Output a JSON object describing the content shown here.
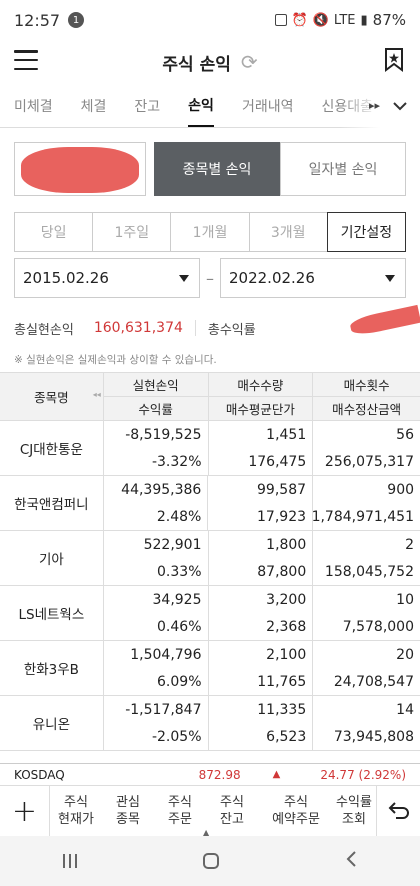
{
  "status": {
    "time": "12:57",
    "notif_count": "1",
    "battery": "87%",
    "network": "LTE"
  },
  "header": {
    "title": "주식 손익"
  },
  "tabs": [
    "미체결",
    "체결",
    "잔고",
    "손익",
    "거래내역",
    "신용대출"
  ],
  "active_tab": "손익",
  "segments": {
    "by_item": "종목별 손익",
    "by_date": "일자별 손익"
  },
  "periods": [
    "당일",
    "1주일",
    "1개월",
    "3개월",
    "기간설정"
  ],
  "active_period": "기간설정",
  "dates": {
    "start": "2015.02.26",
    "end": "2022.02.26",
    "separator": "–"
  },
  "summary": {
    "realized_label": "총실현손익",
    "realized_value": "160,631,374",
    "return_label": "총수익률"
  },
  "note": "※ 실현손익은 실제손익과 상이할 수 있습니다.",
  "table": {
    "headers": {
      "name": "종목명",
      "c1_top": "실현손익",
      "c1_bottom": "수익률",
      "c2_top": "매수수량",
      "c2_bottom": "매수평균단가",
      "c3_top": "매수횟수",
      "c3_bottom": "매수정산금액"
    },
    "rows": [
      {
        "name": "CJ대한통운",
        "pl": "-8,519,525",
        "rate": "-3.32%",
        "qty": "1,451",
        "avg": "176,475",
        "count": "56",
        "amount": "256,075,317",
        "sign": "neg"
      },
      {
        "name": "한국앤컴퍼니",
        "pl": "44,395,386",
        "rate": "2.48%",
        "qty": "99,587",
        "avg": "17,923",
        "count": "900",
        "amount": "1,784,971,451",
        "sign": "pos"
      },
      {
        "name": "기아",
        "pl": "522,901",
        "rate": "0.33%",
        "qty": "1,800",
        "avg": "87,800",
        "count": "2",
        "amount": "158,045,752",
        "sign": "pos"
      },
      {
        "name": "LS네트웍스",
        "pl": "34,925",
        "rate": "0.46%",
        "qty": "3,200",
        "avg": "2,368",
        "count": "10",
        "amount": "7,578,000",
        "sign": "pos"
      },
      {
        "name": "한화3우B",
        "pl": "1,504,796",
        "rate": "6.09%",
        "qty": "2,100",
        "avg": "11,765",
        "count": "20",
        "amount": "24,708,547",
        "sign": "pos"
      },
      {
        "name": "유니온",
        "pl": "-1,517,847",
        "rate": "-2.05%",
        "qty": "11,335",
        "avg": "6,523",
        "count": "14",
        "amount": "73,945,808",
        "sign": "neg"
      }
    ]
  },
  "ticker": {
    "name": "KOSDAQ",
    "price": "872.98",
    "change": "24.77 (2.92%)",
    "direction_icon": "▲"
  },
  "bottom_nav": [
    "주식\n현재가",
    "관심\n종목",
    "주식\n주문",
    "주식\n잔고",
    "주식\n예약주문",
    "수익률\n조회"
  ],
  "colors": {
    "up": "#d03838",
    "down": "#2f6fd1",
    "active_segment": "#5b5f63",
    "redaction": "#e8625e"
  }
}
